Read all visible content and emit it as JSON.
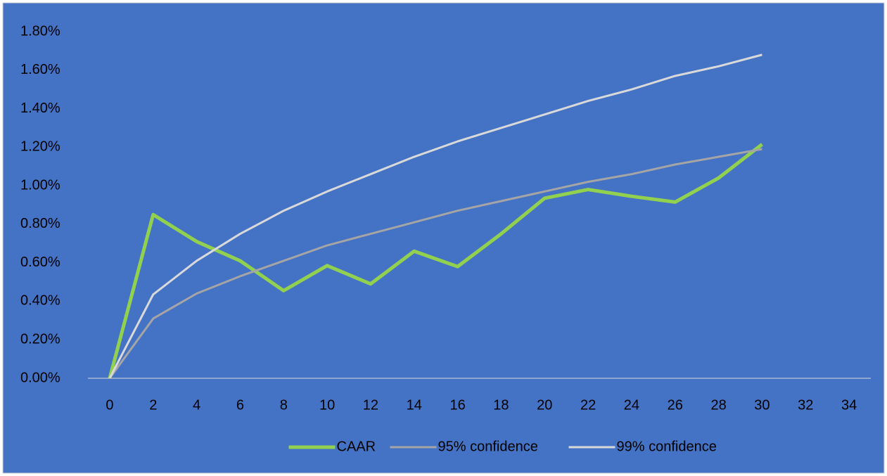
{
  "chart_data": {
    "type": "line",
    "x": [
      0,
      2,
      4,
      6,
      8,
      10,
      12,
      14,
      16,
      18,
      20,
      22,
      24,
      26,
      28,
      30
    ],
    "series": [
      {
        "name": "CAAR",
        "color": "#92d050",
        "values": [
          0,
          0.85,
          0.71,
          0.61,
          0.455,
          0.585,
          0.49,
          0.66,
          0.58,
          0.75,
          0.935,
          0.98,
          0.945,
          0.915,
          1.04,
          1.215
        ]
      },
      {
        "name": "95% confidence",
        "color": "#a5a5a5",
        "values": [
          0,
          0.31,
          0.44,
          0.53,
          0.61,
          0.69,
          0.75,
          0.81,
          0.87,
          0.92,
          0.97,
          1.02,
          1.06,
          1.11,
          1.15,
          1.19
        ]
      },
      {
        "name": "99% confidence",
        "color": "#d9d9d9",
        "values": [
          0,
          0.435,
          0.61,
          0.75,
          0.87,
          0.97,
          1.06,
          1.15,
          1.23,
          1.3,
          1.37,
          1.44,
          1.5,
          1.57,
          1.62,
          1.68
        ]
      }
    ],
    "xlim": [
      -1,
      35
    ],
    "xticks": [
      0,
      2,
      4,
      6,
      8,
      10,
      12,
      14,
      16,
      18,
      20,
      22,
      24,
      26,
      28,
      30,
      32,
      34
    ],
    "ylim": [
      0,
      1.8
    ],
    "yticks": [
      {
        "value": 0,
        "label": "0.00%"
      },
      {
        "value": 0.2,
        "label": "0.20%"
      },
      {
        "value": 0.4,
        "label": "0.40%"
      },
      {
        "value": 0.6,
        "label": "0.60%"
      },
      {
        "value": 0.8,
        "label": "0.80%"
      },
      {
        "value": 1.0,
        "label": "1.00%"
      },
      {
        "value": 1.2,
        "label": "1.20%"
      },
      {
        "value": 1.4,
        "label": "1.40%"
      },
      {
        "value": 1.6,
        "label": "1.60%"
      },
      {
        "value": 1.8,
        "label": "1.80%"
      }
    ],
    "background": "#4472c4",
    "legend": "bottom"
  }
}
